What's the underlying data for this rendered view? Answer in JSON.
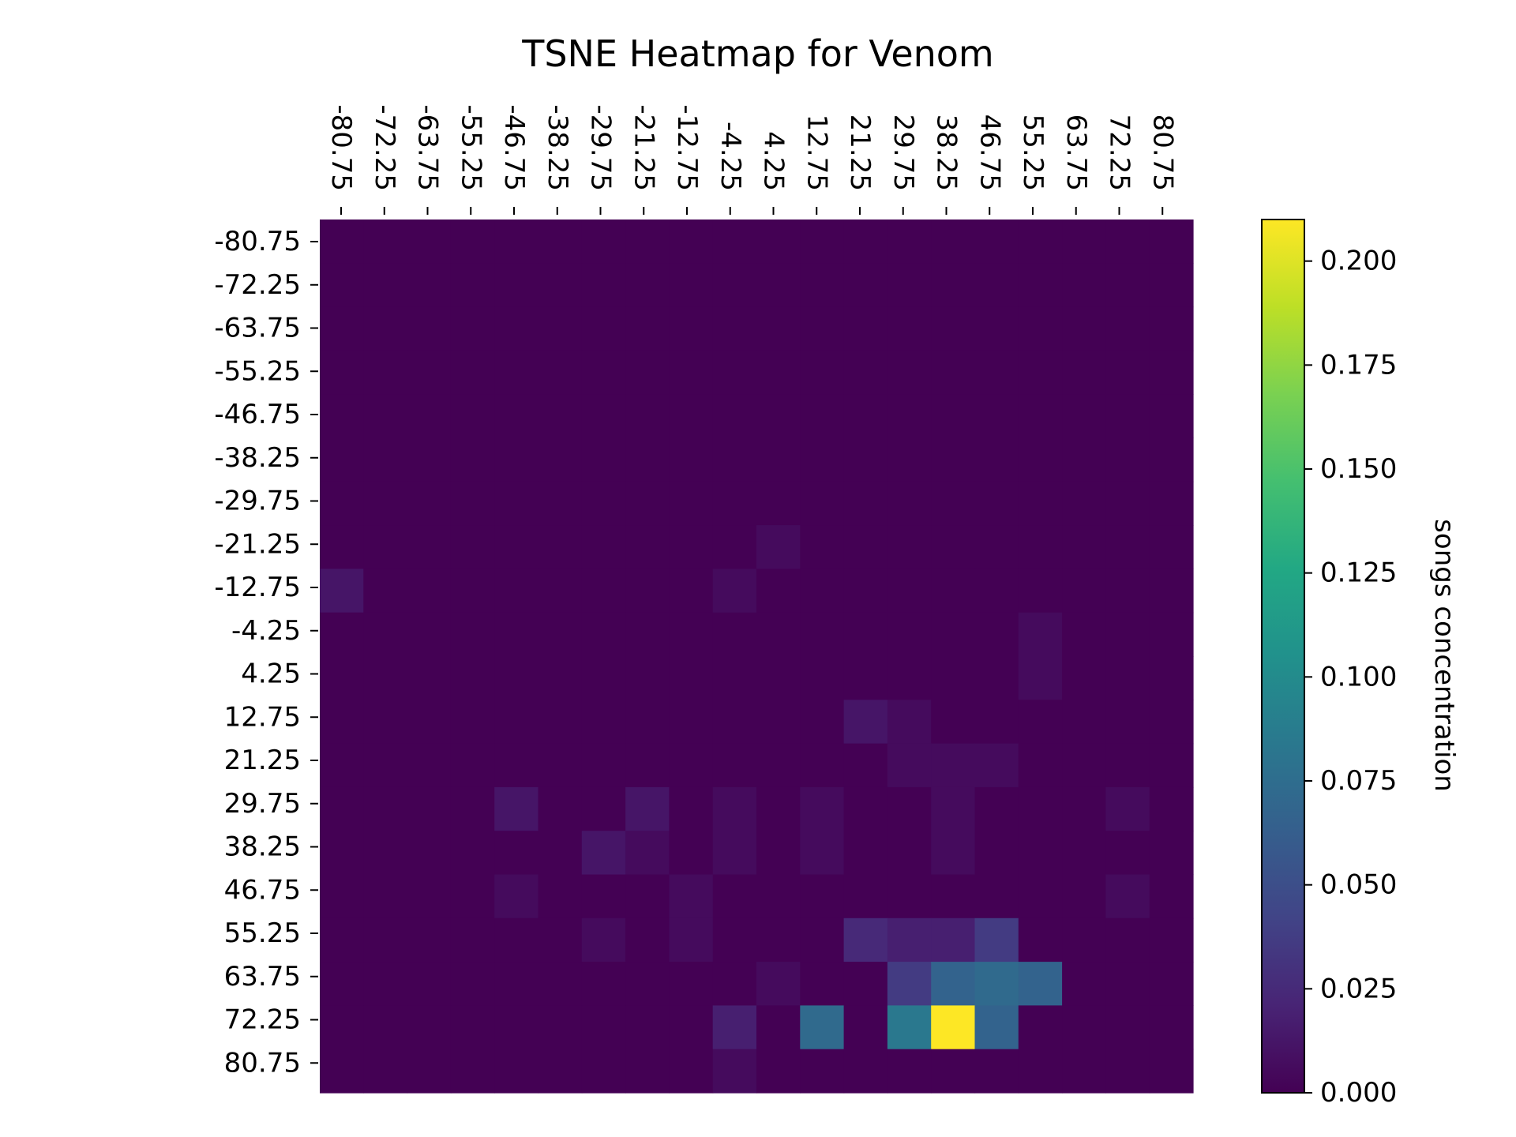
{
  "chart_data": {
    "type": "heatmap",
    "title": "TSNE Heatmap for Venom",
    "x_ticks": [
      "-80.75",
      "-72.25",
      "-63.75",
      "-55.25",
      "-46.75",
      "-38.25",
      "-29.75",
      "-21.25",
      "-12.75",
      "-4.25",
      "4.25",
      "12.75",
      "21.25",
      "29.75",
      "38.25",
      "46.75",
      "55.25",
      "63.75",
      "72.25",
      "80.75"
    ],
    "y_ticks": [
      "-80.75",
      "-72.25",
      "-63.75",
      "-55.25",
      "-46.75",
      "-38.25",
      "-29.75",
      "-21.25",
      "-12.75",
      "-4.25",
      "4.25",
      "12.75",
      "21.25",
      "29.75",
      "38.25",
      "46.75",
      "55.25",
      "63.75",
      "72.25",
      "80.75"
    ],
    "colorbar": {
      "label": "songs concentration",
      "min": 0.0,
      "max": 0.21,
      "ticks": [
        "0.000",
        "0.025",
        "0.050",
        "0.075",
        "0.100",
        "0.125",
        "0.150",
        "0.175",
        "0.200"
      ],
      "colormap": "viridis"
    },
    "values": [
      [
        0,
        0,
        0,
        0,
        0,
        0,
        0,
        0,
        0,
        0,
        0,
        0,
        0,
        0,
        0,
        0,
        0,
        0,
        0,
        0
      ],
      [
        0,
        0,
        0,
        0,
        0,
        0,
        0,
        0,
        0,
        0,
        0,
        0,
        0,
        0,
        0,
        0,
        0,
        0,
        0,
        0
      ],
      [
        0,
        0,
        0,
        0,
        0,
        0,
        0,
        0,
        0,
        0,
        0,
        0,
        0,
        0,
        0,
        0,
        0,
        0,
        0,
        0
      ],
      [
        0,
        0,
        0,
        0,
        0,
        0,
        0,
        0,
        0,
        0,
        0,
        0,
        0,
        0,
        0,
        0,
        0,
        0,
        0,
        0
      ],
      [
        0,
        0,
        0,
        0,
        0,
        0,
        0,
        0,
        0,
        0,
        0,
        0,
        0,
        0,
        0,
        0,
        0,
        0,
        0,
        0
      ],
      [
        0,
        0,
        0,
        0,
        0,
        0,
        0,
        0,
        0,
        0,
        0,
        0,
        0,
        0,
        0,
        0,
        0,
        0,
        0,
        0
      ],
      [
        0,
        0,
        0,
        0,
        0,
        0,
        0,
        0,
        0,
        0,
        0,
        0,
        0,
        0,
        0,
        0,
        0,
        0,
        0,
        0
      ],
      [
        0,
        0,
        0,
        0,
        0,
        0,
        0,
        0,
        0,
        0,
        0.006,
        0,
        0,
        0,
        0,
        0,
        0,
        0,
        0,
        0
      ],
      [
        0.012,
        0,
        0,
        0,
        0,
        0,
        0,
        0,
        0,
        0.006,
        0,
        0,
        0,
        0,
        0,
        0,
        0,
        0,
        0,
        0
      ],
      [
        0,
        0,
        0,
        0,
        0,
        0,
        0,
        0,
        0,
        0,
        0,
        0,
        0,
        0,
        0,
        0,
        0.006,
        0,
        0,
        0
      ],
      [
        0,
        0,
        0,
        0,
        0,
        0,
        0,
        0,
        0,
        0,
        0,
        0,
        0,
        0,
        0,
        0,
        0.006,
        0,
        0,
        0
      ],
      [
        0,
        0,
        0,
        0,
        0,
        0,
        0,
        0,
        0,
        0,
        0,
        0,
        0.012,
        0.006,
        0,
        0,
        0,
        0,
        0,
        0
      ],
      [
        0,
        0,
        0,
        0,
        0,
        0,
        0,
        0,
        0,
        0,
        0,
        0,
        0,
        0.006,
        0.006,
        0.006,
        0,
        0,
        0,
        0
      ],
      [
        0,
        0,
        0,
        0,
        0.012,
        0,
        0,
        0.012,
        0,
        0.006,
        0,
        0.006,
        0,
        0,
        0.006,
        0,
        0,
        0,
        0.006,
        0
      ],
      [
        0,
        0,
        0,
        0,
        0,
        0,
        0.012,
        0.006,
        0,
        0.006,
        0,
        0.006,
        0,
        0,
        0.006,
        0,
        0,
        0,
        0,
        0
      ],
      [
        0,
        0,
        0,
        0,
        0.006,
        0,
        0,
        0,
        0.006,
        0,
        0,
        0,
        0,
        0,
        0,
        0,
        0,
        0,
        0.006,
        0
      ],
      [
        0,
        0,
        0,
        0,
        0,
        0,
        0.006,
        0,
        0.006,
        0,
        0,
        0,
        0.024,
        0.018,
        0.018,
        0.036,
        0,
        0,
        0,
        0
      ],
      [
        0,
        0,
        0,
        0,
        0,
        0,
        0,
        0,
        0,
        0,
        0.006,
        0,
        0,
        0.036,
        0.066,
        0.072,
        0.066,
        0,
        0,
        0
      ],
      [
        0,
        0,
        0,
        0,
        0,
        0,
        0,
        0,
        0,
        0.018,
        0,
        0.072,
        0,
        0.084,
        0.21,
        0.066,
        0,
        0,
        0,
        0
      ],
      [
        0,
        0,
        0,
        0,
        0,
        0,
        0,
        0,
        0,
        0.006,
        0,
        0,
        0,
        0,
        0,
        0,
        0,
        0,
        0,
        0
      ]
    ]
  }
}
